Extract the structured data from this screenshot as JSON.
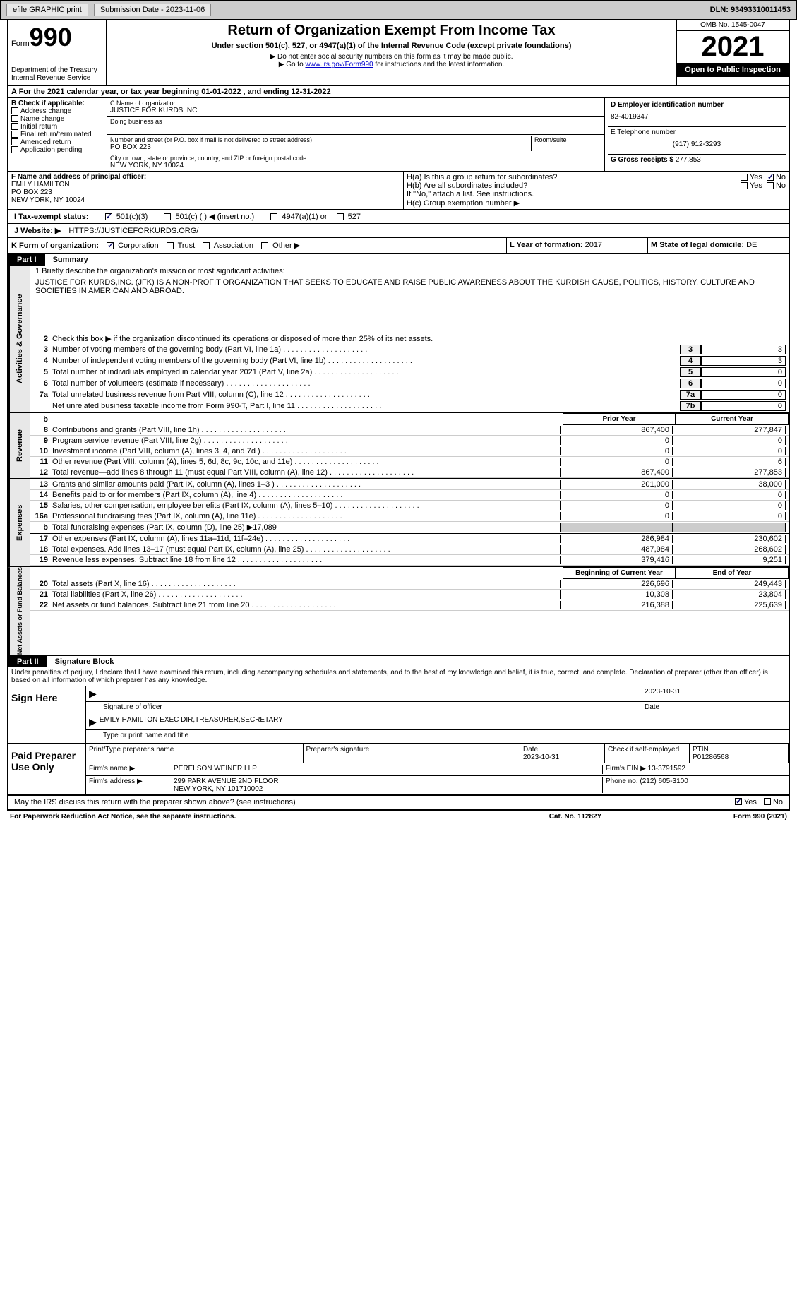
{
  "topbar": {
    "efile": "efile GRAPHIC print",
    "submission": "Submission Date - 2023-11-06",
    "dln": "DLN: 93493310011453"
  },
  "header": {
    "form_word": "Form",
    "form_num": "990",
    "dept": "Department of the Treasury",
    "irs": "Internal Revenue Service",
    "title": "Return of Organization Exempt From Income Tax",
    "sub": "Under section 501(c), 527, or 4947(a)(1) of the Internal Revenue Code (except private foundations)",
    "note1": "▶ Do not enter social security numbers on this form as it may be made public.",
    "note2_pre": "▶ Go to ",
    "note2_link": "www.irs.gov/Form990",
    "note2_post": " for instructions and the latest information.",
    "omb": "OMB No. 1545-0047",
    "year": "2021",
    "inspect": "Open to Public Inspection"
  },
  "a": {
    "text": "A For the 2021 calendar year, or tax year beginning 01-01-2022    , and ending 12-31-2022"
  },
  "b": {
    "label": "B Check if applicable:",
    "opts": [
      "Address change",
      "Name change",
      "Initial return",
      "Final return/terminated",
      "Amended return",
      "Application pending"
    ]
  },
  "c": {
    "name_label": "C Name of organization",
    "name": "JUSTICE FOR KURDS INC",
    "dba_label": "Doing business as",
    "addr_label": "Number and street (or P.O. box if mail is not delivered to street address)",
    "room_label": "Room/suite",
    "addr": "PO BOX 223",
    "city_label": "City or town, state or province, country, and ZIP or foreign postal code",
    "city": "NEW YORK, NY  10024"
  },
  "d": {
    "label": "D Employer identification number",
    "val": "82-4019347"
  },
  "e": {
    "label": "E Telephone number",
    "val": "(917) 912-3293"
  },
  "g": {
    "label": "G Gross receipts $",
    "val": "277,853"
  },
  "f": {
    "label": "F  Name and address of principal officer:",
    "name": "EMILY HAMILTON",
    "addr1": "PO BOX 223",
    "addr2": "NEW YORK, NY  10024"
  },
  "h": {
    "a": "H(a)  Is this a group return for subordinates?",
    "b": "H(b)  Are all subordinates included?",
    "note": "If \"No,\" attach a list. See instructions.",
    "c": "H(c)  Group exemption number ▶",
    "yes": "Yes",
    "no": "No"
  },
  "i": {
    "label": "I    Tax-exempt status:",
    "o1": "501(c)(3)",
    "o2": "501(c) (  ) ◀ (insert no.)",
    "o3": "4947(a)(1) or",
    "o4": "527"
  },
  "j": {
    "label": "J  Website: ▶",
    "val": "HTTPS://JUSTICEFORKURDS.ORG/"
  },
  "k": {
    "label": "K Form of organization:",
    "o1": "Corporation",
    "o2": "Trust",
    "o3": "Association",
    "o4": "Other ▶"
  },
  "l": {
    "label": "L Year of formation:",
    "val": "2017"
  },
  "m": {
    "label": "M State of legal domicile:",
    "val": "DE"
  },
  "part1": {
    "hdr": "Part I",
    "title": "Summary"
  },
  "mission": {
    "label": "1  Briefly describe the organization's mission or most significant activities:",
    "text": "JUSTICE FOR KURDS,INC. (JFK) IS A NON-PROFIT ORGANIZATION THAT SEEKS TO EDUCATE AND RAISE PUBLIC AWARENESS ABOUT THE KURDISH CAUSE, POLITICS, HISTORY, CULTURE AND SOCIETIES IN AMERICAN AND ABROAD."
  },
  "line2": "Check this box ▶          if the organization discontinued its operations or disposed of more than 25% of its net assets.",
  "sides": {
    "gov": "Activities & Governance",
    "rev": "Revenue",
    "exp": "Expenses",
    "net": "Net Assets or Fund Balances"
  },
  "gov_lines": [
    {
      "n": "3",
      "t": "Number of voting members of the governing body (Part VI, line 1a)",
      "b": "3",
      "v": "3"
    },
    {
      "n": "4",
      "t": "Number of independent voting members of the governing body (Part VI, line 1b)",
      "b": "4",
      "v": "3"
    },
    {
      "n": "5",
      "t": "Total number of individuals employed in calendar year 2021 (Part V, line 2a)",
      "b": "5",
      "v": "0"
    },
    {
      "n": "6",
      "t": "Total number of volunteers (estimate if necessary)",
      "b": "6",
      "v": "0"
    },
    {
      "n": "7a",
      "t": "Total unrelated business revenue from Part VIII, column (C), line 12",
      "b": "7a",
      "v": "0"
    },
    {
      "n": "",
      "t": "Net unrelated business taxable income from Form 990-T, Part I, line 11",
      "b": "7b",
      "v": "0"
    }
  ],
  "col_hdrs": {
    "b": "b",
    "prior": "Prior Year",
    "curr": "Current Year"
  },
  "rev_lines": [
    {
      "n": "8",
      "t": "Contributions and grants (Part VIII, line 1h)",
      "p": "867,400",
      "c": "277,847"
    },
    {
      "n": "9",
      "t": "Program service revenue (Part VIII, line 2g)",
      "p": "0",
      "c": "0"
    },
    {
      "n": "10",
      "t": "Investment income (Part VIII, column (A), lines 3, 4, and 7d )",
      "p": "0",
      "c": "0"
    },
    {
      "n": "11",
      "t": "Other revenue (Part VIII, column (A), lines 5, 6d, 8c, 9c, 10c, and 11e)",
      "p": "0",
      "c": "6"
    },
    {
      "n": "12",
      "t": "Total revenue—add lines 8 through 11 (must equal Part VIII, column (A), line 12)",
      "p": "867,400",
      "c": "277,853"
    }
  ],
  "exp_lines": [
    {
      "n": "13",
      "t": "Grants and similar amounts paid (Part IX, column (A), lines 1–3 )",
      "p": "201,000",
      "c": "38,000"
    },
    {
      "n": "14",
      "t": "Benefits paid to or for members (Part IX, column (A), line 4)",
      "p": "0",
      "c": "0"
    },
    {
      "n": "15",
      "t": "Salaries, other compensation, employee benefits (Part IX, column (A), lines 5–10)",
      "p": "0",
      "c": "0"
    },
    {
      "n": "16a",
      "t": "Professional fundraising fees (Part IX, column (A), line 11e)",
      "p": "0",
      "c": "0"
    }
  ],
  "line16b": {
    "n": "b",
    "t": "Total fundraising expenses (Part IX, column (D), line 25) ▶17,089"
  },
  "exp_lines2": [
    {
      "n": "17",
      "t": "Other expenses (Part IX, column (A), lines 11a–11d, 11f–24e)",
      "p": "286,984",
      "c": "230,602"
    },
    {
      "n": "18",
      "t": "Total expenses. Add lines 13–17 (must equal Part IX, column (A), line 25)",
      "p": "487,984",
      "c": "268,602"
    },
    {
      "n": "19",
      "t": "Revenue less expenses. Subtract line 18 from line 12",
      "p": "379,416",
      "c": "9,251"
    }
  ],
  "net_hdrs": {
    "begin": "Beginning of Current Year",
    "end": "End of Year"
  },
  "net_lines": [
    {
      "n": "20",
      "t": "Total assets (Part X, line 16)",
      "p": "226,696",
      "c": "249,443"
    },
    {
      "n": "21",
      "t": "Total liabilities (Part X, line 26)",
      "p": "10,308",
      "c": "23,804"
    },
    {
      "n": "22",
      "t": "Net assets or fund balances. Subtract line 21 from line 20",
      "p": "216,388",
      "c": "225,639"
    }
  ],
  "part2": {
    "hdr": "Part II",
    "title": "Signature Block"
  },
  "penalty": "Under penalties of perjury, I declare that I have examined this return, including accompanying schedules and statements, and to the best of my knowledge and belief, it is true, correct, and complete. Declaration of preparer (other than officer) is based on all information of which preparer has any knowledge.",
  "sign": {
    "here": "Sign Here",
    "sig_label": "Signature of officer",
    "date": "2023-10-31",
    "date_label": "Date",
    "name": "EMILY HAMILTON  EXEC DIR,TREASURER,SECRETARY",
    "name_label": "Type or print name and title"
  },
  "prep": {
    "label": "Paid Preparer Use Only",
    "h1": "Print/Type preparer's name",
    "h2": "Preparer's signature",
    "h3": "Date",
    "h3v": "2023-10-31",
    "h4": "Check          if self-employed",
    "h5": "PTIN",
    "h5v": "P01286568",
    "firm_label": "Firm's name      ▶",
    "firm": "PERELSON WEINER LLP",
    "ein_label": "Firm's EIN ▶",
    "ein": "13-3791592",
    "addr_label": "Firm's address ▶",
    "addr1": "299 PARK AVENUE 2ND FLOOR",
    "addr2": "NEW YORK, NY  101710002",
    "phone_label": "Phone no.",
    "phone": "(212) 605-3100"
  },
  "discuss": "May the IRS discuss this return with the preparer shown above? (see instructions)",
  "footer": {
    "left": "For Paperwork Reduction Act Notice, see the separate instructions.",
    "mid": "Cat. No. 11282Y",
    "right": "Form 990 (2021)"
  }
}
